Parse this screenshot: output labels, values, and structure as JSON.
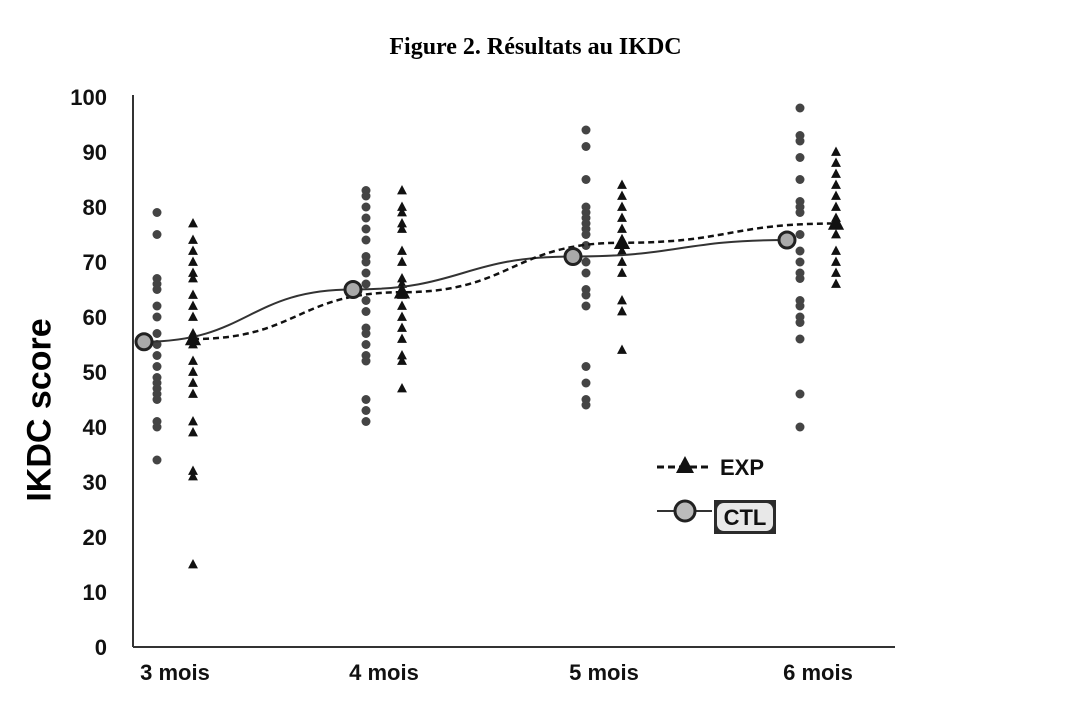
{
  "title": "Figure 2. Résultats au IKDC",
  "chart_data": {
    "type": "scatter",
    "title": "Figure 2. Résultats au IKDC",
    "xlabel": "",
    "ylabel": "IKDC score",
    "ylim": [
      0,
      100
    ],
    "yticks": [
      "0",
      "10",
      "20",
      "30",
      "40",
      "50",
      "60",
      "70",
      "80",
      "90",
      "100"
    ],
    "categories": [
      "3 mois",
      "4 mois",
      "5 mois",
      "6 mois"
    ],
    "grid": false,
    "legend_position": "right",
    "series": [
      {
        "name": "EXP",
        "style": "dashed line, triangle markers",
        "means": [
          56,
          64.5,
          73.5,
          77
        ],
        "individual_points": [
          [
            77,
            74,
            72,
            70,
            68,
            67,
            64,
            62,
            60,
            57,
            55,
            52,
            50,
            48,
            46,
            41,
            39,
            32,
            31,
            15
          ],
          [
            83,
            80,
            79,
            77,
            76,
            72,
            70,
            67,
            66,
            64,
            62,
            60,
            58,
            56,
            53,
            52,
            47
          ],
          [
            84,
            82,
            80,
            78,
            76,
            74,
            72,
            70,
            68,
            63,
            61,
            54
          ],
          [
            90,
            88,
            86,
            84,
            82,
            80,
            78,
            75,
            72,
            70,
            68,
            66
          ]
        ]
      },
      {
        "name": "CTL",
        "style": "solid line, circle markers",
        "means": [
          55.5,
          65,
          71,
          74
        ],
        "individual_points": [
          [
            79,
            75,
            67,
            66,
            65,
            62,
            60,
            57,
            55,
            53,
            51,
            49,
            48,
            47,
            46,
            45,
            41,
            40,
            34
          ],
          [
            83,
            82,
            80,
            78,
            76,
            74,
            71,
            70,
            68,
            66,
            63,
            61,
            58,
            57,
            55,
            53,
            52,
            45,
            43,
            41
          ],
          [
            94,
            91,
            85,
            80,
            79,
            78,
            77,
            76,
            75,
            73,
            70,
            68,
            65,
            64,
            62,
            51,
            48,
            45,
            44
          ],
          [
            98,
            93,
            92,
            89,
            85,
            81,
            80,
            79,
            75,
            72,
            70,
            68,
            67,
            63,
            62,
            60,
            59,
            56,
            46,
            40
          ]
        ]
      }
    ]
  }
}
